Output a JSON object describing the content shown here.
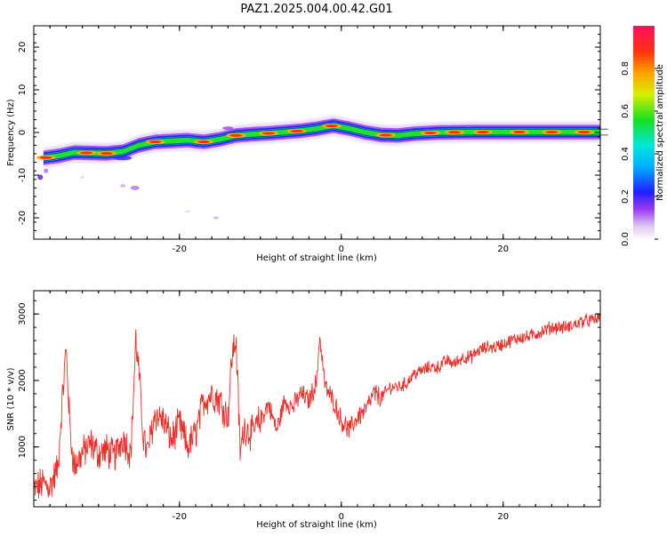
{
  "title": "PAZ1.2025.004.00.42.G01",
  "chart_data": [
    {
      "type": "heatmap",
      "xlabel": "Height of straight line (km)",
      "ylabel": "Frequency (Hz)",
      "xlim": [
        -38,
        32
      ],
      "ylim": [
        -25,
        25
      ],
      "xticks": [
        -20,
        0,
        20
      ],
      "yticks": [
        -20,
        -10,
        0,
        10,
        20
      ],
      "colorbar": {
        "label": "Normalized spectral amplitude",
        "range": [
          0,
          1
        ],
        "ticks": [
          "0.0",
          "0.2",
          "0.4",
          "0.6",
          "0.8"
        ]
      },
      "ridge": {
        "x": [
          -37,
          -35,
          -33,
          -31,
          -29,
          -27,
          -25,
          -23,
          -21,
          -19,
          -17,
          -15,
          -13,
          -11,
          -9,
          -7,
          -5,
          -3,
          -1,
          1,
          3,
          5,
          7,
          9,
          12,
          16,
          20,
          25,
          30,
          32
        ],
        "y": [
          -6,
          -5.5,
          -4.7,
          -4.8,
          -4.9,
          -4.5,
          -3,
          -2.2,
          -2,
          -1.8,
          -2.2,
          -1.6,
          -0.7,
          -0.4,
          -0.2,
          0.1,
          0.4,
          0.9,
          1.6,
          0.9,
          0,
          -0.6,
          -0.7,
          -0.3,
          0,
          0.1,
          0.1,
          0.1,
          0.1,
          0.1
        ]
      }
    },
    {
      "type": "line",
      "xlabel": "Height of straight line (km)",
      "ylabel": "SNR (10 * v/v)",
      "xlim": [
        -38,
        32
      ],
      "ylim": [
        100,
        3350
      ],
      "xticks": [
        -20,
        0,
        20
      ],
      "yticks": [
        1000,
        2000,
        3000
      ],
      "color": "#e8302a",
      "series": [
        {
          "x": [
            -38,
            -37,
            -36,
            -35,
            -34.6,
            -34,
            -33.5,
            -33,
            -32,
            -31,
            -30,
            -29,
            -28,
            -27,
            -26,
            -25.4,
            -25,
            -24.5,
            -24,
            -23,
            -22,
            -21,
            -20,
            -19,
            -18,
            -17,
            -16,
            -15,
            -14,
            -13.5,
            -13,
            -12.5,
            -12,
            -11,
            -10,
            -9,
            -8,
            -7,
            -6,
            -5,
            -4,
            -3,
            -2.7,
            -2,
            -1,
            0,
            1,
            2,
            3,
            4,
            5,
            6,
            7,
            8,
            9,
            10,
            11,
            12,
            13,
            14,
            15,
            16,
            17,
            18,
            19,
            20,
            21,
            22,
            23,
            24,
            25,
            26,
            27,
            28,
            29,
            30,
            31,
            32
          ],
          "y": [
            350,
            450,
            400,
            700,
            1500,
            2500,
            1200,
            700,
            900,
            1050,
            900,
            950,
            850,
            1150,
            900,
            2600,
            2100,
            1200,
            900,
            1500,
            1400,
            1100,
            1350,
            1000,
            1200,
            1700,
            1800,
            1700,
            1450,
            2400,
            2600,
            900,
            1300,
            1200,
            1400,
            1650,
            1250,
            1700,
            1600,
            1800,
            1700,
            2000,
            2700,
            1900,
            1700,
            1400,
            1250,
            1450,
            1550,
            1800,
            1750,
            1900,
            1900,
            1950,
            2100,
            2150,
            2200,
            2200,
            2300,
            2250,
            2350,
            2350,
            2450,
            2500,
            2500,
            2550,
            2600,
            2650,
            2650,
            2700,
            2750,
            2800,
            2800,
            2800,
            2850,
            2900,
            2900,
            2950
          ]
        }
      ]
    }
  ]
}
